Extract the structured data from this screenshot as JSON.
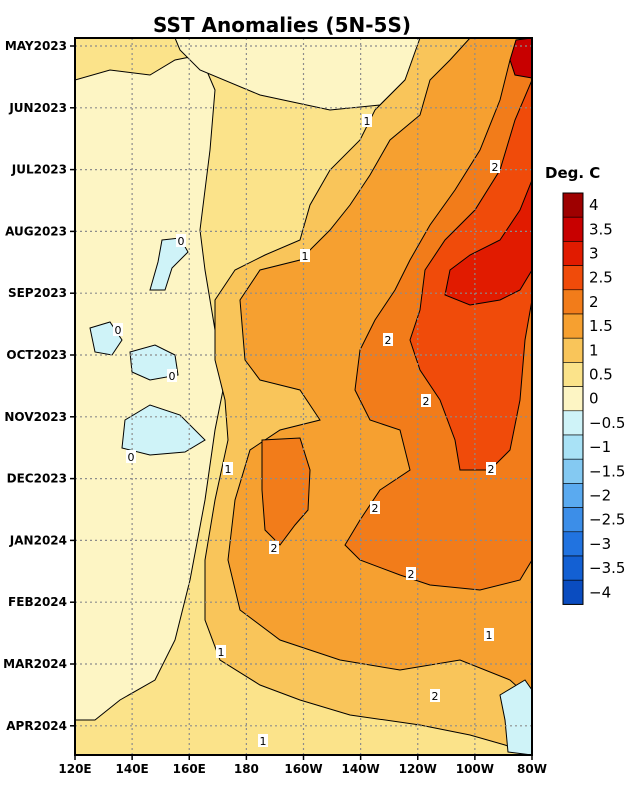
{
  "chart_data": {
    "type": "heatmap",
    "title": "SST Anomalies (5N-5S)",
    "colorbar_label": "Deg. C",
    "x_ticks": [
      "120E",
      "140E",
      "160E",
      "180",
      "160W",
      "140W",
      "120W",
      "100W",
      "80W"
    ],
    "y_ticks": [
      "MAY2023",
      "JUN2023",
      "JUL2023",
      "AUG2023",
      "SEP2023",
      "OCT2023",
      "NOV2023",
      "DEC2023",
      "JAN2024",
      "FEB2024",
      "MAR2024",
      "APR2024"
    ],
    "xlim": [
      120,
      280
    ],
    "grid": true,
    "colorbar": {
      "levels": [
        4,
        3.5,
        3,
        2.5,
        2,
        1.5,
        1,
        0.5,
        0,
        -0.5,
        -1,
        -1.5,
        -2,
        -2.5,
        -3,
        -3.5,
        -4
      ],
      "labels": [
        "4",
        "3.5",
        "3",
        "2.5",
        "2",
        "1.5",
        "1",
        "0.5",
        "0",
        "−0.5",
        "−1",
        "−1.5",
        "−2",
        "−2.5",
        "−3",
        "−3.5",
        "−4"
      ],
      "colors": [
        "#9e0000",
        "#c80000",
        "#e11b00",
        "#f04b0a",
        "#f27c1a",
        "#f6a030",
        "#f9c55a",
        "#fbe38a",
        "#fdf5c4",
        "#cff3f8",
        "#a9e2f6",
        "#84c9f2",
        "#5aaaf0",
        "#3c8ee8",
        "#2173e0",
        "#1360d3",
        "#0a4cc0"
      ]
    },
    "contour_labels": [
      "1",
      "2",
      "2",
      "0",
      "0",
      "0",
      "0",
      "1",
      "2",
      "2",
      "2",
      "2",
      "2",
      "1",
      "1",
      "1",
      "1",
      "2"
    ]
  }
}
